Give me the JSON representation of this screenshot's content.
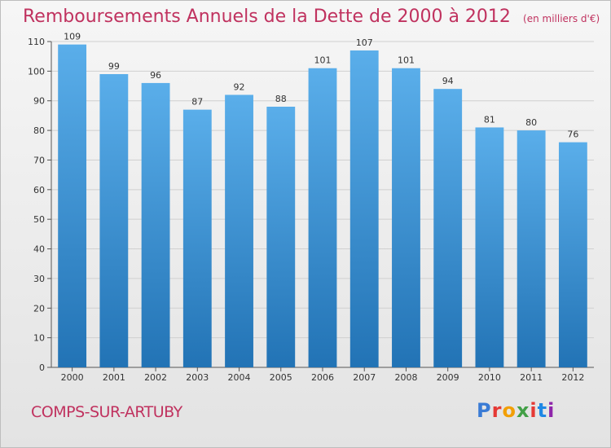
{
  "header": {
    "title": "Remboursements Annuels de la Dette de 2000 à 2012",
    "unit": "(en milliers d'€)"
  },
  "footer": {
    "commune": "COMPS-SUR-ARTUBY",
    "brand": "Proxiti",
    "brand_colors": [
      "#3a7bd5",
      "#e53935",
      "#f29f05",
      "#43a047",
      "#e53935",
      "#1e88e5",
      "#8e24aa"
    ]
  },
  "colors": {
    "bar_top": "#5aaeea",
    "bar_bottom": "#2273b5",
    "grid": "#d0d0d0",
    "title": "#c0325f"
  },
  "chart_data": {
    "type": "bar",
    "categories": [
      "2000",
      "2001",
      "2002",
      "2003",
      "2004",
      "2005",
      "2006",
      "2007",
      "2008",
      "2009",
      "2010",
      "2011",
      "2012"
    ],
    "values": [
      109,
      99,
      96,
      87,
      92,
      88,
      101,
      107,
      101,
      94,
      81,
      80,
      76
    ],
    "ylim": [
      0,
      110
    ],
    "yticks": [
      0,
      10,
      20,
      30,
      40,
      50,
      60,
      70,
      80,
      90,
      100,
      110
    ],
    "grid": true,
    "data_labels": true
  }
}
